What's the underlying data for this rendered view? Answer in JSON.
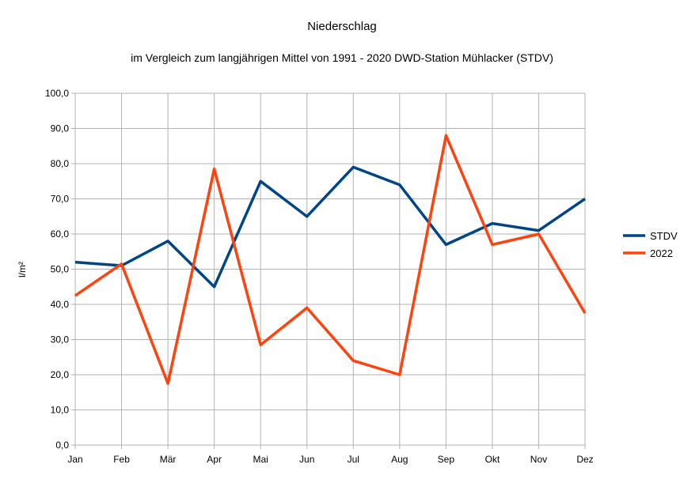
{
  "chart_data": {
    "type": "line",
    "title": "Niederschlag",
    "subtitle": "im Vergleich zum langjährigen Mittel von 1991 - 2020 DWD-Station Mühlacker (STDV)",
    "xlabel": "",
    "ylabel": "l/m²",
    "categories": [
      "Jan",
      "Feb",
      "Mär",
      "Apr",
      "Mai",
      "Jun",
      "Jul",
      "Aug",
      "Sep",
      "Okt",
      "Nov",
      "Dez"
    ],
    "ylim": [
      0,
      100
    ],
    "ytick_step": 10,
    "ytick_labels": [
      "0,0",
      "10,0",
      "20,0",
      "30,0",
      "40,0",
      "50,0",
      "60,0",
      "70,0",
      "80,0",
      "90,0",
      "100,0"
    ],
    "grid": true,
    "legend_position": "right",
    "series": [
      {
        "name": "STDV",
        "color": "#004586",
        "values": [
          52,
          51,
          58,
          45,
          75,
          65,
          79,
          74,
          57,
          63,
          61,
          70
        ]
      },
      {
        "name": "2022",
        "color": "#ff420e",
        "values": [
          42.5,
          51.5,
          17.5,
          78.5,
          28.5,
          39,
          24,
          20,
          88,
          57,
          60,
          37.5
        ]
      }
    ]
  }
}
